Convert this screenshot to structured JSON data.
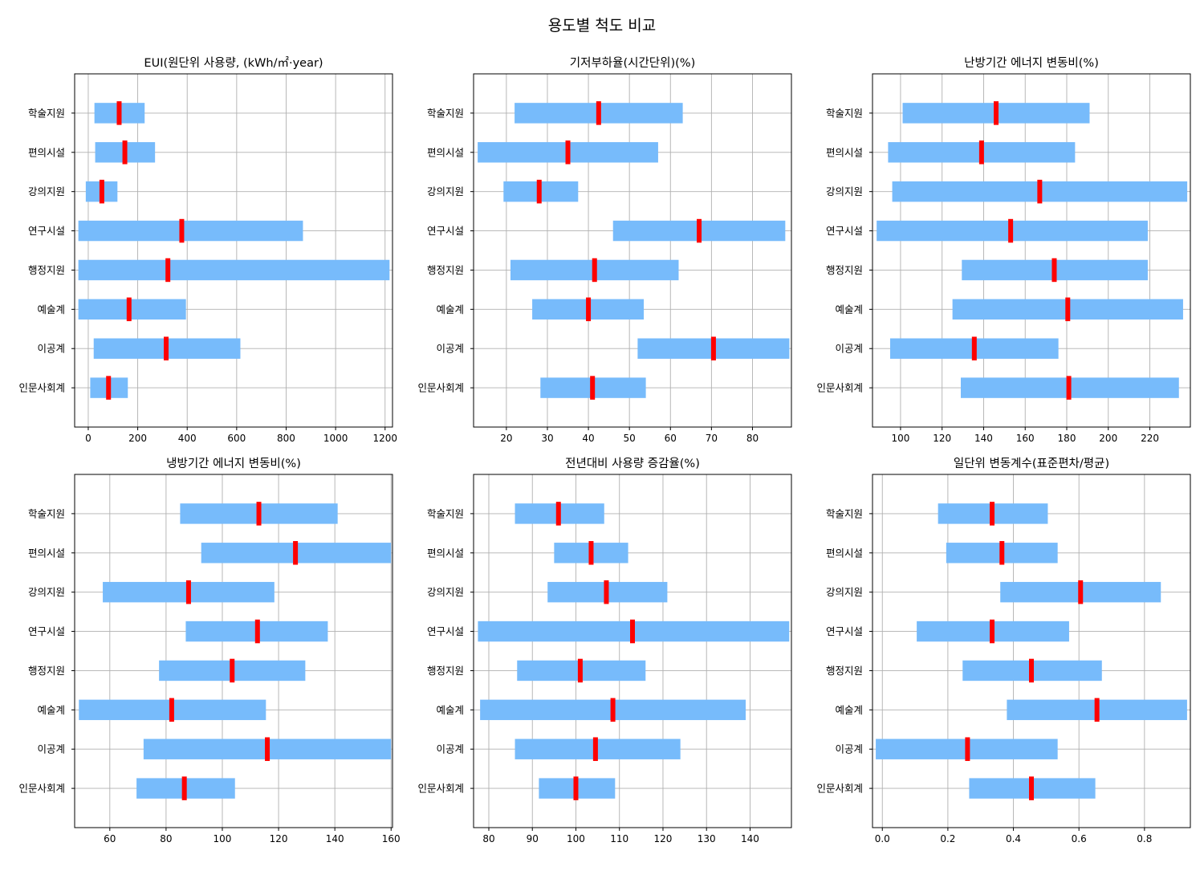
{
  "suptitle": "용도별 척도 비교",
  "categories": [
    "학술지원",
    "편의시설",
    "강의지원",
    "연구시설",
    "행정지원",
    "예술계",
    "이공계",
    "인문사회계"
  ],
  "colors": {
    "range": "#77bbfb",
    "median": "#ff0000",
    "grid": "#b0b0b0"
  },
  "chart_data": [
    {
      "type": "bar",
      "title": "EUI(원단위 사용량, (kWh/㎡·year)",
      "xlim": [
        -55,
        1230
      ],
      "xticks": [
        0,
        200,
        400,
        600,
        800,
        1000,
        1200
      ],
      "series": [
        {
          "category": "학술지원",
          "low": 25,
          "high": 228,
          "median": 125
        },
        {
          "category": "편의시설",
          "low": 28,
          "high": 270,
          "median": 148
        },
        {
          "category": "강의지원",
          "low": -10,
          "high": 118,
          "median": 55
        },
        {
          "category": "연구시설",
          "low": -40,
          "high": 868,
          "median": 378
        },
        {
          "category": "행정지원",
          "low": -40,
          "high": 1218,
          "median": 322
        },
        {
          "category": "예술계",
          "low": -40,
          "high": 395,
          "median": 165
        },
        {
          "category": "이공계",
          "low": 22,
          "high": 615,
          "median": 315
        },
        {
          "category": "인문사회계",
          "low": 8,
          "high": 160,
          "median": 82
        }
      ]
    },
    {
      "type": "bar",
      "title": "기저부하율(시간단위)(%)",
      "xlim": [
        12,
        89.5
      ],
      "xticks": [
        20,
        30,
        40,
        50,
        60,
        70,
        80
      ],
      "series": [
        {
          "category": "학술지원",
          "low": 22,
          "high": 63,
          "median": 42.5
        },
        {
          "category": "편의시설",
          "low": 13,
          "high": 57,
          "median": 35
        },
        {
          "category": "강의지원",
          "low": 19.3,
          "high": 37.5,
          "median": 28
        },
        {
          "category": "연구시설",
          "low": 46,
          "high": 88,
          "median": 67
        },
        {
          "category": "행정지원",
          "low": 21,
          "high": 62,
          "median": 41.5
        },
        {
          "category": "예술계",
          "low": 26.3,
          "high": 53.5,
          "median": 40
        },
        {
          "category": "이공계",
          "low": 52,
          "high": 89,
          "median": 70.5
        },
        {
          "category": "인문사회계",
          "low": 28.3,
          "high": 54,
          "median": 41
        }
      ]
    },
    {
      "type": "bar",
      "title": "난방기간 에너지 변동비(%)",
      "xlim": [
        86.5,
        239.5
      ],
      "xticks": [
        100,
        120,
        140,
        160,
        180,
        200,
        220
      ],
      "series": [
        {
          "category": "학술지원",
          "low": 101,
          "high": 191,
          "median": 146
        },
        {
          "category": "편의시설",
          "low": 94,
          "high": 184,
          "median": 139
        },
        {
          "category": "강의지원",
          "low": 96,
          "high": 238,
          "median": 167
        },
        {
          "category": "연구시설",
          "low": 88.5,
          "high": 219,
          "median": 153
        },
        {
          "category": "행정지원",
          "low": 129.5,
          "high": 219,
          "median": 174
        },
        {
          "category": "예술계",
          "low": 125,
          "high": 236,
          "median": 180.5
        },
        {
          "category": "이공계",
          "low": 95,
          "high": 176,
          "median": 135.5
        },
        {
          "category": "인문사회계",
          "low": 129,
          "high": 234,
          "median": 181
        }
      ]
    },
    {
      "type": "bar",
      "title": "냉방기간 에너지 변동비(%)",
      "xlim": [
        47.5,
        160.5
      ],
      "xticks": [
        60,
        80,
        100,
        120,
        140,
        160
      ],
      "series": [
        {
          "category": "학술지원",
          "low": 85,
          "high": 141,
          "median": 113
        },
        {
          "category": "편의시설",
          "low": 92.5,
          "high": 160,
          "median": 126
        },
        {
          "category": "강의지원",
          "low": 57.5,
          "high": 118.5,
          "median": 88
        },
        {
          "category": "연구시설",
          "low": 87,
          "high": 137.5,
          "median": 112.5
        },
        {
          "category": "행정지원",
          "low": 77.5,
          "high": 129.5,
          "median": 103.5
        },
        {
          "category": "예술계",
          "low": 49,
          "high": 115.5,
          "median": 82
        },
        {
          "category": "이공계",
          "low": 72,
          "high": 160,
          "median": 116
        },
        {
          "category": "인문사회계",
          "low": 69.5,
          "high": 104.5,
          "median": 86.5
        }
      ]
    },
    {
      "type": "bar",
      "title": "전년대비 사용량 증감율(%)",
      "xlim": [
        76.5,
        149.5
      ],
      "xticks": [
        80,
        90,
        100,
        110,
        120,
        130,
        140
      ],
      "series": [
        {
          "category": "학술지원",
          "low": 86,
          "high": 106.5,
          "median": 96
        },
        {
          "category": "편의시설",
          "low": 95,
          "high": 112,
          "median": 103.5
        },
        {
          "category": "강의지원",
          "low": 93.5,
          "high": 121,
          "median": 107
        },
        {
          "category": "연구시설",
          "low": 77.5,
          "high": 149,
          "median": 113
        },
        {
          "category": "행정지원",
          "low": 86.5,
          "high": 116,
          "median": 101
        },
        {
          "category": "예술계",
          "low": 78,
          "high": 139,
          "median": 108.5
        },
        {
          "category": "이공계",
          "low": 86,
          "high": 124,
          "median": 104.5
        },
        {
          "category": "인문사회계",
          "low": 91.5,
          "high": 109,
          "median": 100
        }
      ]
    },
    {
      "type": "bar",
      "title": "일단위 변동계수(표준편차/평균)",
      "xlim": [
        -0.03,
        0.94
      ],
      "xticks": [
        0.0,
        0.2,
        0.4,
        0.6,
        0.8
      ],
      "tick_format": "0.0",
      "series": [
        {
          "category": "학술지원",
          "low": 0.17,
          "high": 0.505,
          "median": 0.335
        },
        {
          "category": "편의시설",
          "low": 0.195,
          "high": 0.535,
          "median": 0.365
        },
        {
          "category": "강의지원",
          "low": 0.36,
          "high": 0.85,
          "median": 0.605
        },
        {
          "category": "연구시설",
          "low": 0.105,
          "high": 0.57,
          "median": 0.335
        },
        {
          "category": "행정지원",
          "low": 0.245,
          "high": 0.67,
          "median": 0.455
        },
        {
          "category": "예술계",
          "low": 0.38,
          "high": 0.93,
          "median": 0.655
        },
        {
          "category": "이공계",
          "low": -0.02,
          "high": 0.535,
          "median": 0.26
        },
        {
          "category": "인문사회계",
          "low": 0.265,
          "high": 0.65,
          "median": 0.455
        }
      ]
    }
  ]
}
